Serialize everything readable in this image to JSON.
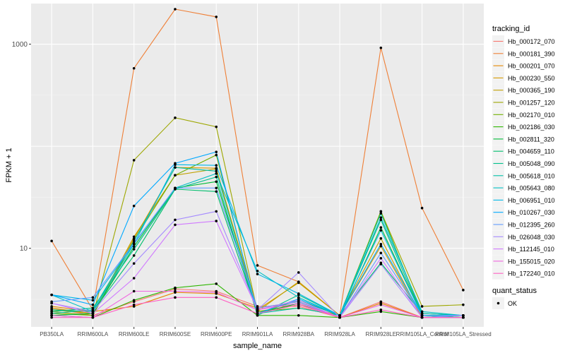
{
  "chart_data": {
    "type": "line",
    "xlabel": "sample_name",
    "ylabel": "FPKM + 1",
    "y_scale": "log10",
    "ylim": [
      1.7,
      2500
    ],
    "y_ticks": [
      {
        "value": 10,
        "label": "10"
      },
      {
        "value": 1000,
        "label": "1000"
      }
    ],
    "grid": true,
    "legend_placement": "right",
    "categories": [
      "PB350LA",
      "RRIM600LA",
      "RRIM600LE",
      "RRIM600SE",
      "RRIM600PE",
      "RRIM901LA",
      "RRIM928BA",
      "RRIM928LA",
      "RRIM928LE",
      "RRIM105LA_Control",
      "RRIM105LA_Stressed"
    ],
    "series_legend_title": "tracking_id",
    "series": [
      {
        "name": "Hb_000172_070",
        "color": "#F8766D",
        "values": [
          2.6,
          2.2,
          3.0,
          4.0,
          3.8,
          2.7,
          2.7,
          2.1,
          3.0,
          2.1,
          2.1
        ]
      },
      {
        "name": "Hb_000181_390",
        "color": "#EF7F36",
        "values": [
          11.8,
          2.5,
          580,
          2200,
          1850,
          6.8,
          4.7,
          2.2,
          920,
          24.8,
          3.9
        ]
      },
      {
        "name": "Hb_000201_070",
        "color": "#E58700",
        "values": [
          2.7,
          2.4,
          2.7,
          3.7,
          3.6,
          2.6,
          3.0,
          2.1,
          2.9,
          2.1,
          2.2
        ]
      },
      {
        "name": "Hb_000230_550",
        "color": "#D49A00",
        "values": [
          2.6,
          2.3,
          12.4,
          62,
          61,
          2.4,
          4.7,
          2.2,
          10.5,
          2.1,
          2.1
        ]
      },
      {
        "name": "Hb_000365_190",
        "color": "#C0A000",
        "values": [
          2.5,
          2.3,
          13.0,
          52,
          60,
          2.5,
          4.6,
          2.2,
          12.5,
          2.1,
          2.1
        ]
      },
      {
        "name": "Hb_001257_120",
        "color": "#9DA700",
        "values": [
          2.4,
          2.2,
          73,
          190,
          155,
          2.4,
          2.8,
          2.2,
          23,
          2.7,
          2.8
        ]
      },
      {
        "name": "Hb_002170_010",
        "color": "#72B000",
        "values": [
          2.3,
          2.2,
          12.0,
          52,
          82,
          2.4,
          2.6,
          2.2,
          23,
          2.2,
          2.1
        ]
      },
      {
        "name": "Hb_002186_030",
        "color": "#2EB600",
        "values": [
          2.2,
          2.1,
          3.1,
          4.1,
          4.5,
          2.2,
          2.2,
          2.1,
          2.4,
          2.1,
          2.1
        ]
      },
      {
        "name": "Hb_002811_320",
        "color": "#00BA38",
        "values": [
          2.2,
          2.3,
          10.4,
          39,
          45,
          2.3,
          2.9,
          2.1,
          16,
          2.2,
          2.1
        ]
      },
      {
        "name": "Hb_004659_110",
        "color": "#00BE6C",
        "values": [
          2.5,
          2.4,
          8.5,
          38,
          36,
          2.3,
          3.1,
          2.2,
          7.2,
          2.3,
          2.2
        ]
      },
      {
        "name": "Hb_005048_090",
        "color": "#00C08B",
        "values": [
          2.4,
          2.6,
          9.8,
          38,
          50,
          2.2,
          3.5,
          2.2,
          19,
          2.2,
          2.1
        ]
      },
      {
        "name": "Hb_005618_010",
        "color": "#00C1A9",
        "values": [
          2.3,
          2.5,
          11.8,
          62,
          57,
          2.3,
          2.6,
          2.2,
          22,
          2.3,
          2.2
        ]
      },
      {
        "name": "Hb_005643_080",
        "color": "#00BFC4",
        "values": [
          3.5,
          2.4,
          11.0,
          39,
          54,
          6.0,
          3.3,
          2.2,
          20,
          2.4,
          2.2
        ]
      },
      {
        "name": "Hb_006951_010",
        "color": "#00B8E7",
        "values": [
          3.5,
          3.1,
          11.0,
          66,
          65,
          5.6,
          3.6,
          2.2,
          15,
          2.2,
          2.2
        ]
      },
      {
        "name": "Hb_010267_030",
        "color": "#00A9FF",
        "values": [
          3.5,
          2.8,
          26,
          68,
          88,
          2.3,
          3.2,
          2.2,
          11,
          2.2,
          2.2
        ]
      },
      {
        "name": "Hb_012395_260",
        "color": "#619CFF",
        "values": [
          3.0,
          3.3,
          11.2,
          39,
          39,
          2.6,
          3.0,
          2.1,
          9.0,
          2.2,
          2.2
        ]
      },
      {
        "name": "Hb_026048_030",
        "color": "#A58AFF",
        "values": [
          2.9,
          2.4,
          7.1,
          19,
          23,
          2.5,
          5.8,
          2.1,
          7.0,
          2.1,
          2.2
        ]
      },
      {
        "name": "Hb_112145_010",
        "color": "#D078FF",
        "values": [
          2.9,
          2.3,
          5.1,
          17.0,
          18.5,
          2.5,
          3.1,
          2.1,
          8.0,
          2.1,
          2.1
        ]
      },
      {
        "name": "Hb_155015_020",
        "color": "#F066E0",
        "values": [
          2.2,
          2.1,
          3.8,
          3.8,
          3.7,
          2.5,
          2.9,
          2.1,
          2.8,
          2.1,
          2.1
        ]
      },
      {
        "name": "Hb_172240_010",
        "color": "#FF61C3",
        "values": [
          2.1,
          2.1,
          2.8,
          3.3,
          3.3,
          2.3,
          2.8,
          2.1,
          2.5,
          2.1,
          2.1
        ]
      }
    ],
    "shape_legend": {
      "title": "quant_status",
      "items": [
        {
          "label": "OK",
          "shape": "point"
        }
      ]
    }
  }
}
